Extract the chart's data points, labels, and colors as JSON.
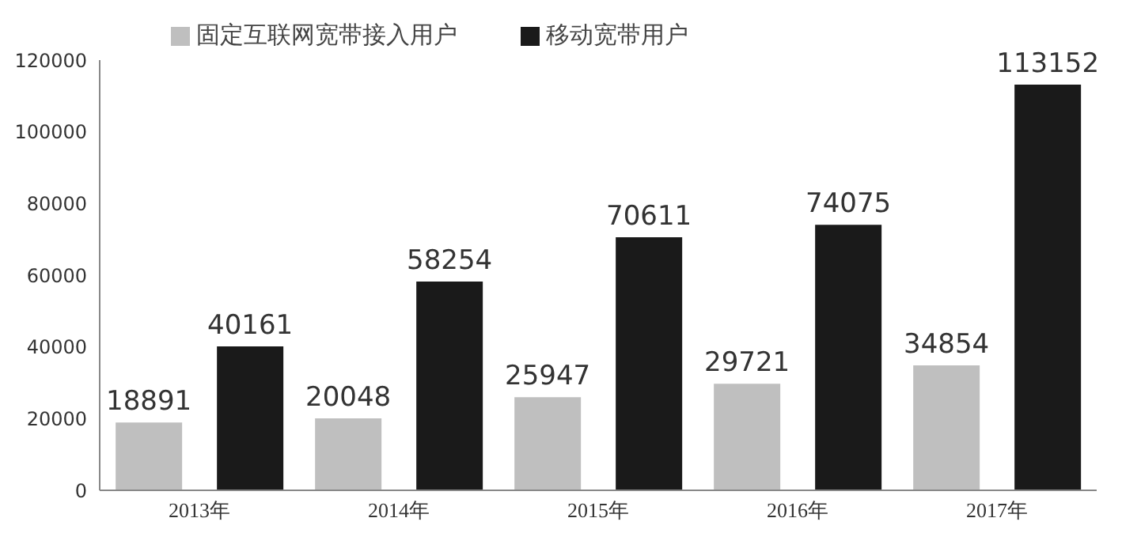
{
  "chart_data": {
    "type": "bar",
    "categories": [
      "2013年",
      "2014年",
      "2015年",
      "2016年",
      "2017年"
    ],
    "series": [
      {
        "name": "固定互联网宽带接入用户",
        "color": "#bfbfbf",
        "values": [
          18891,
          20048,
          25947,
          29721,
          34854
        ]
      },
      {
        "name": "移动宽带用户",
        "color": "#1a1a1a",
        "values": [
          40161,
          58254,
          70611,
          74075,
          113152
        ]
      }
    ],
    "ylim": [
      0,
      120000
    ],
    "yticks": [
      0,
      20000,
      40000,
      60000,
      80000,
      100000,
      120000
    ],
    "data_labels": true,
    "grid": false,
    "legend": "top left"
  }
}
